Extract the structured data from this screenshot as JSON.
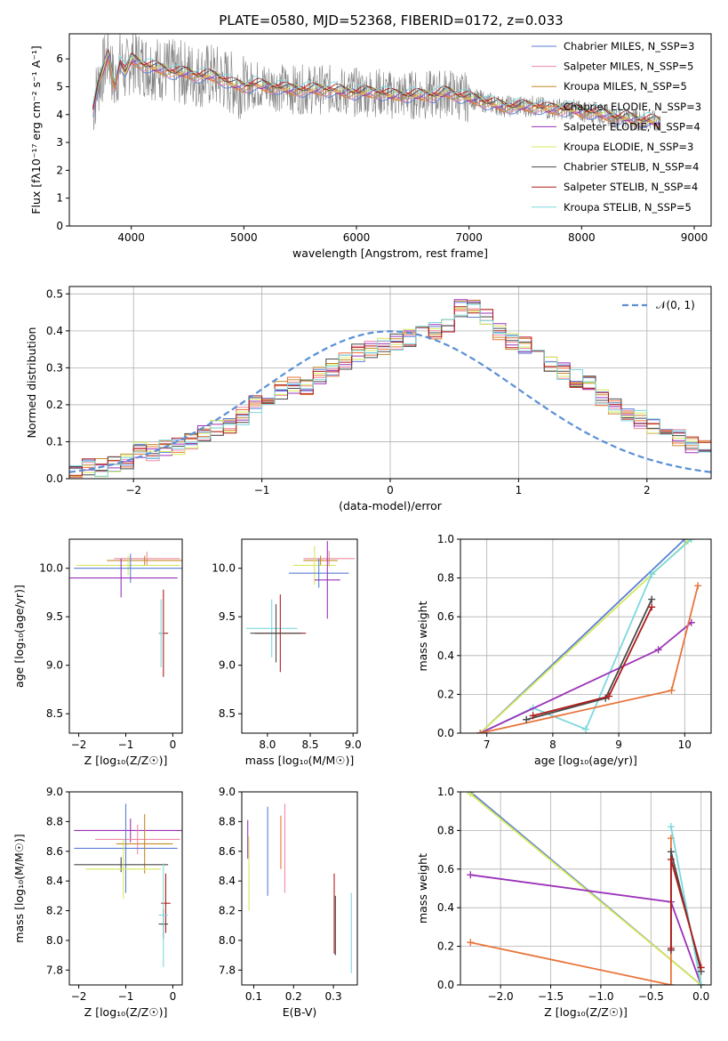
{
  "figure": {
    "title": "PLATE=0580, MJD=52368, FIBERID=0172, z=0.033"
  },
  "chart_data": [
    {
      "id": "spectrum",
      "type": "line",
      "title": "PLATE=0580, MJD=52368, FIBERID=0172, z=0.033",
      "xlabel": "wavelength [Angstrom, rest frame]",
      "ylabel": "Flux [fλ10⁻¹⁷ erg cm⁻² s⁻¹ A⁻¹]",
      "xlim": [
        3450,
        9150
      ],
      "ylim": [
        0,
        6.9
      ],
      "xticks": [
        4000,
        5000,
        6000,
        7000,
        8000,
        9000
      ],
      "yticks": [
        0,
        1,
        2,
        3,
        4,
        5,
        6
      ],
      "grid": false,
      "legend": "top-right",
      "data_series": {
        "name": "",
        "color": "#808080",
        "x": [
          3660,
          3700,
          3750,
          3800,
          3850,
          3900,
          3950,
          4000,
          4100,
          4200,
          4300,
          4400,
          4500,
          4600,
          4700,
          4800,
          4900,
          5000,
          5100,
          5200,
          5300,
          5400,
          5500,
          5600,
          5700,
          5800,
          5900,
          6000,
          6100,
          6200,
          6300,
          6400,
          6500,
          6600,
          6700,
          6800,
          6900,
          7000,
          7100,
          7200,
          7300,
          7400,
          7500,
          7600,
          7700,
          7800,
          7900,
          8000,
          8100,
          8200,
          8300,
          8400,
          8500,
          8600,
          8700
        ],
        "y": [
          4.2,
          5.0,
          5.6,
          6.2,
          5.0,
          5.9,
          5.5,
          6.0,
          5.8,
          5.7,
          5.6,
          5.5,
          5.5,
          5.4,
          5.4,
          5.3,
          5.1,
          5.0,
          5.1,
          5.0,
          5.0,
          4.9,
          4.9,
          4.9,
          4.9,
          4.9,
          4.8,
          4.8,
          4.8,
          4.8,
          4.7,
          4.7,
          4.7,
          4.7,
          4.7,
          4.8,
          4.7,
          4.6,
          4.5,
          4.4,
          4.3,
          4.3,
          4.3,
          4.3,
          4.2,
          4.2,
          4.2,
          4.1,
          4.1,
          4.0,
          3.9,
          3.9,
          3.8,
          3.8,
          3.7
        ]
      },
      "series": [
        {
          "name": "Chabrier MILES, N_SSP=3",
          "color": "#5a7fd6"
        },
        {
          "name": "Salpeter MILES, N_SSP=5",
          "color": "#ef8aa8"
        },
        {
          "name": "Kroupa MILES, N_SSP=5",
          "color": "#c58a2a"
        },
        {
          "name": "Chabrier ELODIE, N_SSP=3",
          "color": "#e8743b"
        },
        {
          "name": "Salpeter ELODIE, N_SSP=4",
          "color": "#9b32b8"
        },
        {
          "name": "Kroupa ELODIE, N_SSP=3",
          "color": "#d6e85a"
        },
        {
          "name": "Chabrier STELIB, N_SSP=4",
          "color": "#4a4a4a"
        },
        {
          "name": "Salpeter STELIB, N_SSP=4",
          "color": "#b01c1c"
        },
        {
          "name": "Kroupa STELIB, N_SSP=5",
          "color": "#7dd8dd"
        }
      ]
    },
    {
      "id": "residuals",
      "type": "area",
      "xlabel": "(data-model)/error",
      "ylabel": "Normed distribution",
      "xlim": [
        -2.5,
        2.5
      ],
      "ylim": [
        0,
        0.52
      ],
      "xticks": [
        -2,
        -1,
        0,
        1,
        2
      ],
      "yticks": [
        0.0,
        0.1,
        0.2,
        0.3,
        0.4,
        0.5
      ],
      "grid": true,
      "legend": "top-right",
      "reference": {
        "name": "𝒩(0, 1)",
        "color": "#5a8fd6"
      },
      "bin_width": 0.1,
      "hist_values": [
        0.02,
        0.03,
        0.03,
        0.04,
        0.05,
        0.08,
        0.07,
        0.08,
        0.09,
        0.1,
        0.12,
        0.14,
        0.14,
        0.17,
        0.2,
        0.22,
        0.24,
        0.25,
        0.25,
        0.28,
        0.3,
        0.32,
        0.34,
        0.35,
        0.36,
        0.37,
        0.38,
        0.4,
        0.4,
        0.42,
        0.46,
        0.46,
        0.44,
        0.4,
        0.37,
        0.36,
        0.33,
        0.31,
        0.29,
        0.27,
        0.26,
        0.22,
        0.2,
        0.18,
        0.16,
        0.14,
        0.12,
        0.11,
        0.09,
        0.08,
        0.07,
        0.06,
        0.05,
        0.04,
        0.03
      ]
    },
    {
      "id": "age-vs-Z",
      "type": "scatter",
      "xlabel": "Z [log₁₀(Z/Z☉)]",
      "ylabel": "age  [log₁₀(age/yr)]",
      "xlim": [
        -2.2,
        0.2
      ],
      "ylim": [
        8.3,
        10.3
      ],
      "xticks": [
        -2,
        -1,
        0
      ],
      "yticks": [
        8.5,
        9.0,
        9.5,
        10.0
      ],
      "points": [
        {
          "x": -0.55,
          "y": 10.1,
          "xerr": 0.7,
          "yerr": 0.07,
          "color": "#ef8aa8"
        },
        {
          "x": -0.6,
          "y": 10.08,
          "xerr": 0.8,
          "yerr": 0.05,
          "color": "#c58a2a"
        },
        {
          "x": -0.95,
          "y": 10.03,
          "xerr": 1.1,
          "yerr": 0.1,
          "color": "#d6e85a"
        },
        {
          "x": -0.9,
          "y": 10.0,
          "xerr": 1.2,
          "yerr": 0.15,
          "color": "#5a7fd6"
        },
        {
          "x": -1.1,
          "y": 9.9,
          "xerr": 1.2,
          "yerr": 0.2,
          "color": "#9b32b8"
        },
        {
          "x": -0.2,
          "y": 9.33,
          "xerr": 0.1,
          "yerr": 0.45,
          "color": "#b01c1c"
        },
        {
          "x": -0.25,
          "y": 9.33,
          "xerr": 0.05,
          "yerr": 0.35,
          "color": "#7dd8dd"
        }
      ]
    },
    {
      "id": "age-vs-mass",
      "type": "scatter",
      "xlabel": "mass [log₁₀(M/M☉)]",
      "ylabel": "",
      "xlim": [
        7.7,
        9.05
      ],
      "ylim": [
        8.3,
        10.3
      ],
      "xticks": [
        8.0,
        8.5,
        9.0
      ],
      "yticks": [
        8.5,
        9.0,
        9.5,
        10.0
      ],
      "points": [
        {
          "x": 8.72,
          "y": 10.1,
          "xerr": 0.3,
          "yerr": 0.08,
          "color": "#ef8aa8"
        },
        {
          "x": 8.62,
          "y": 10.08,
          "xerr": 0.2,
          "yerr": 0.05,
          "color": "#c58a2a"
        },
        {
          "x": 8.55,
          "y": 10.03,
          "xerr": 0.25,
          "yerr": 0.2,
          "color": "#d6e85a"
        },
        {
          "x": 8.6,
          "y": 9.95,
          "xerr": 0.35,
          "yerr": 0.15,
          "color": "#5a7fd6"
        },
        {
          "x": 8.7,
          "y": 9.88,
          "xerr": 0.15,
          "yerr": 0.4,
          "color": "#9b32b8"
        },
        {
          "x": 8.05,
          "y": 9.38,
          "xerr": 0.3,
          "yerr": 0.3,
          "color": "#7dd8dd"
        },
        {
          "x": 8.15,
          "y": 9.33,
          "xerr": 0.3,
          "yerr": 0.4,
          "color": "#b01c1c"
        },
        {
          "x": 8.1,
          "y": 9.33,
          "xerr": 0.3,
          "yerr": 0.3,
          "color": "#4a4a4a"
        }
      ]
    },
    {
      "id": "massweight-vs-age",
      "type": "line",
      "xlabel": "age  [log₁₀(age/yr)]",
      "ylabel": "mass weight",
      "xlim": [
        6.6,
        10.4
      ],
      "ylim": [
        0,
        1.0
      ],
      "xticks": [
        7,
        8,
        9,
        10
      ],
      "yticks": [
        0.0,
        0.2,
        0.4,
        0.6,
        0.8,
        1.0
      ],
      "grid": true,
      "series": [
        {
          "color": "#5a7fd6",
          "x": [
            6.9,
            10.0
          ],
          "y": [
            0.0,
            1.0
          ]
        },
        {
          "color": "#d6e85a",
          "x": [
            6.9,
            10.05
          ],
          "y": [
            0.0,
            0.99
          ]
        },
        {
          "color": "#7dd8dd",
          "x": [
            6.9,
            7.7,
            8.5,
            9.5,
            10.1
          ],
          "y": [
            0.0,
            0.13,
            0.02,
            0.82,
            1.0
          ]
        },
        {
          "color": "#9b32b8",
          "x": [
            6.9,
            9.6,
            10.1
          ],
          "y": [
            0.0,
            0.43,
            0.57
          ]
        },
        {
          "color": "#e8743b",
          "x": [
            6.9,
            9.8,
            10.2
          ],
          "y": [
            0.0,
            0.22,
            0.76
          ]
        },
        {
          "color": "#4a4a4a",
          "x": [
            7.6,
            8.8,
            9.5
          ],
          "y": [
            0.07,
            0.18,
            0.69
          ]
        },
        {
          "color": "#b01c1c",
          "x": [
            7.7,
            8.85,
            9.5
          ],
          "y": [
            0.09,
            0.19,
            0.65
          ]
        }
      ]
    },
    {
      "id": "mass-vs-Z",
      "type": "scatter",
      "xlabel": "Z [log₁₀(Z/Z☉)]",
      "ylabel": "mass [log₁₀(M/M☉)]",
      "xlim": [
        -2.2,
        0.2
      ],
      "ylim": [
        7.7,
        9.0
      ],
      "xticks": [
        -2,
        -1,
        0
      ],
      "yticks": [
        7.8,
        8.0,
        8.2,
        8.4,
        8.6,
        8.8,
        9.0
      ],
      "points": [
        {
          "x": -0.9,
          "y": 8.74,
          "xerr": 1.2,
          "yerr": 0.08,
          "color": "#9b32b8"
        },
        {
          "x": -0.75,
          "y": 8.68,
          "xerr": 0.9,
          "yerr": 0.1,
          "color": "#ef8aa8"
        },
        {
          "x": -1.0,
          "y": 8.62,
          "xerr": 1.1,
          "yerr": 0.3,
          "color": "#5a7fd6"
        },
        {
          "x": -0.6,
          "y": 8.65,
          "xerr": 0.6,
          "yerr": 0.2,
          "color": "#c58a2a"
        },
        {
          "x": -1.1,
          "y": 8.51,
          "xerr": 1.0,
          "yerr": 0.05,
          "color": "#4a4a4a"
        },
        {
          "x": -1.05,
          "y": 8.48,
          "xerr": 0.8,
          "yerr": 0.2,
          "color": "#d6e85a"
        },
        {
          "x": -0.15,
          "y": 8.25,
          "xerr": 0.1,
          "yerr": 0.2,
          "color": "#b01c1c"
        },
        {
          "x": -0.2,
          "y": 8.11,
          "xerr": 0.1,
          "yerr": 0.1,
          "color": "#4a4a4a"
        },
        {
          "x": -0.2,
          "y": 8.17,
          "xerr": 0.1,
          "yerr": 0.35,
          "color": "#7dd8dd"
        }
      ]
    },
    {
      "id": "mass-vs-EBV",
      "type": "scatter",
      "xlabel": "E(B-V)",
      "ylabel": "",
      "xlim": [
        0.07,
        0.36
      ],
      "ylim": [
        7.7,
        9.0
      ],
      "xticks": [
        0.1,
        0.2,
        0.3
      ],
      "yticks": [
        7.8,
        8.0,
        8.2,
        8.4,
        8.6,
        8.8,
        9.0
      ],
      "points": [
        {
          "x": 0.085,
          "y": 8.68,
          "xerr": 0.0,
          "yerr": 0.13,
          "color": "#9b32b8"
        },
        {
          "x": 0.088,
          "y": 8.45,
          "xerr": 0.0,
          "yerr": 0.25,
          "color": "#d6e85a"
        },
        {
          "x": 0.135,
          "y": 8.6,
          "xerr": 0.0,
          "yerr": 0.3,
          "color": "#5a7fd6"
        },
        {
          "x": 0.168,
          "y": 8.66,
          "xerr": 0.0,
          "yerr": 0.18,
          "color": "#e8743b"
        },
        {
          "x": 0.178,
          "y": 8.62,
          "xerr": 0.0,
          "yerr": 0.3,
          "color": "#ef8aa8"
        },
        {
          "x": 0.302,
          "y": 8.18,
          "xerr": 0.0,
          "yerr": 0.27,
          "color": "#b01c1c"
        },
        {
          "x": 0.305,
          "y": 8.1,
          "xerr": 0.0,
          "yerr": 0.2,
          "color": "#4a4a4a"
        },
        {
          "x": 0.345,
          "y": 8.05,
          "xerr": 0.0,
          "yerr": 0.27,
          "color": "#7dd8dd"
        }
      ]
    },
    {
      "id": "massweight-vs-Z",
      "type": "line",
      "xlabel": "Z [log₁₀(Z/Z☉)]",
      "ylabel": "mass weight",
      "xlim": [
        -2.4,
        0.1
      ],
      "ylim": [
        0,
        1.0
      ],
      "xticks": [
        -2.0,
        -1.5,
        -1.0,
        -0.5,
        0.0
      ],
      "yticks": [
        0.0,
        0.2,
        0.4,
        0.6,
        0.8,
        1.0
      ],
      "grid": true,
      "series": [
        {
          "color": "#5a7fd6",
          "x": [
            -2.3,
            0.0
          ],
          "y": [
            1.0,
            0.0
          ]
        },
        {
          "color": "#d6e85a",
          "x": [
            -2.3,
            0.0
          ],
          "y": [
            0.99,
            0.0
          ]
        },
        {
          "color": "#9b32b8",
          "x": [
            -2.3,
            -0.3,
            0.0
          ],
          "y": [
            0.57,
            0.43,
            0.0
          ]
        },
        {
          "color": "#e8743b",
          "x": [
            -2.3,
            -0.3,
            -0.3
          ],
          "y": [
            0.22,
            0.0,
            0.76
          ]
        },
        {
          "color": "#7dd8dd",
          "x": [
            -0.3,
            0.0
          ],
          "y": [
            0.82,
            0.0
          ]
        },
        {
          "color": "#4a4a4a",
          "x": [
            -0.3,
            -0.3,
            0.0
          ],
          "y": [
            0.18,
            0.69,
            0.07
          ]
        },
        {
          "color": "#b01c1c",
          "x": [
            -0.3,
            -0.3,
            0.0
          ],
          "y": [
            0.19,
            0.65,
            0.09
          ]
        }
      ]
    }
  ]
}
